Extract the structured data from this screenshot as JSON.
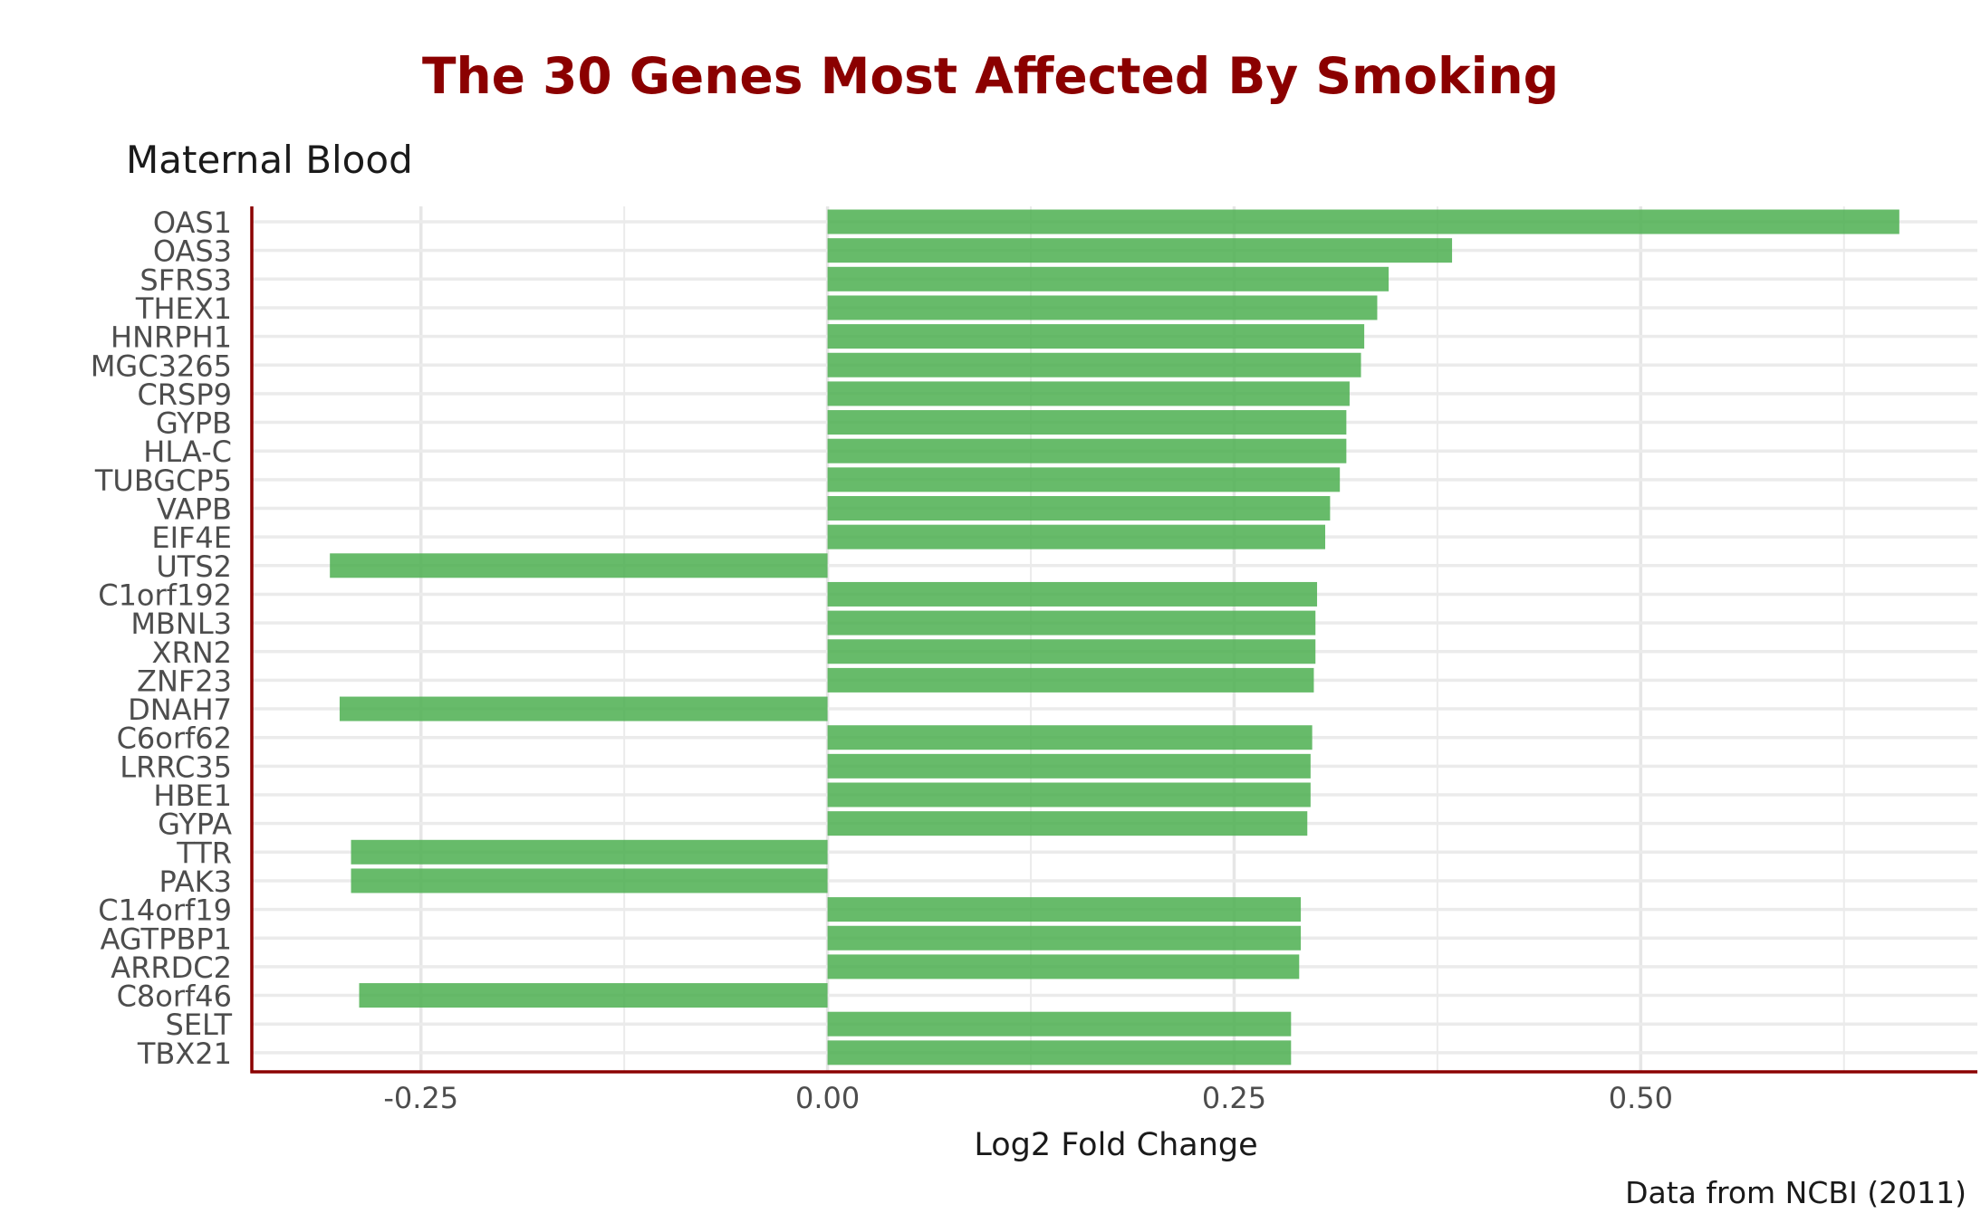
{
  "chart_data": {
    "type": "bar",
    "orientation": "horizontal",
    "title": "The 30 Genes Most Affected By Smoking",
    "subtitle": "Maternal Blood",
    "xlabel": "Log2 Fold Change",
    "caption": "Data from NCBI (2011)",
    "xlim": [
      -0.354,
      0.707
    ],
    "xticks": [
      -0.25,
      0.0,
      0.25,
      0.5
    ],
    "xtick_labels": [
      "-0.25",
      "0.00",
      "0.25",
      "0.50"
    ],
    "bar_color": "#4caf50",
    "axis_color": "#8b0000",
    "categories": [
      "OAS1",
      "OAS3",
      "SFRS3",
      "THEX1",
      "HNRPH1",
      "MGC3265",
      "CRSP9",
      "GYPB",
      "HLA-C",
      "TUBGCP5",
      "VAPB",
      "EIF4E",
      "UTS2",
      "C1orf192",
      "MBNL3",
      "XRN2",
      "ZNF23",
      "DNAH7",
      "C6orf62",
      "LRRC35",
      "HBE1",
      "GYPA",
      "TTR",
      "PAK3",
      "C14orf19",
      "AGTPBP1",
      "ARRDC2",
      "C8orf46",
      "SELT",
      "TBX21"
    ],
    "values": [
      0.659,
      0.384,
      0.345,
      0.338,
      0.33,
      0.328,
      0.321,
      0.319,
      0.319,
      0.315,
      0.309,
      0.306,
      -0.306,
      0.301,
      0.3,
      0.3,
      0.299,
      -0.3,
      0.298,
      0.297,
      0.297,
      0.295,
      -0.293,
      -0.293,
      0.291,
      0.291,
      0.29,
      -0.288,
      0.285,
      0.285
    ]
  }
}
